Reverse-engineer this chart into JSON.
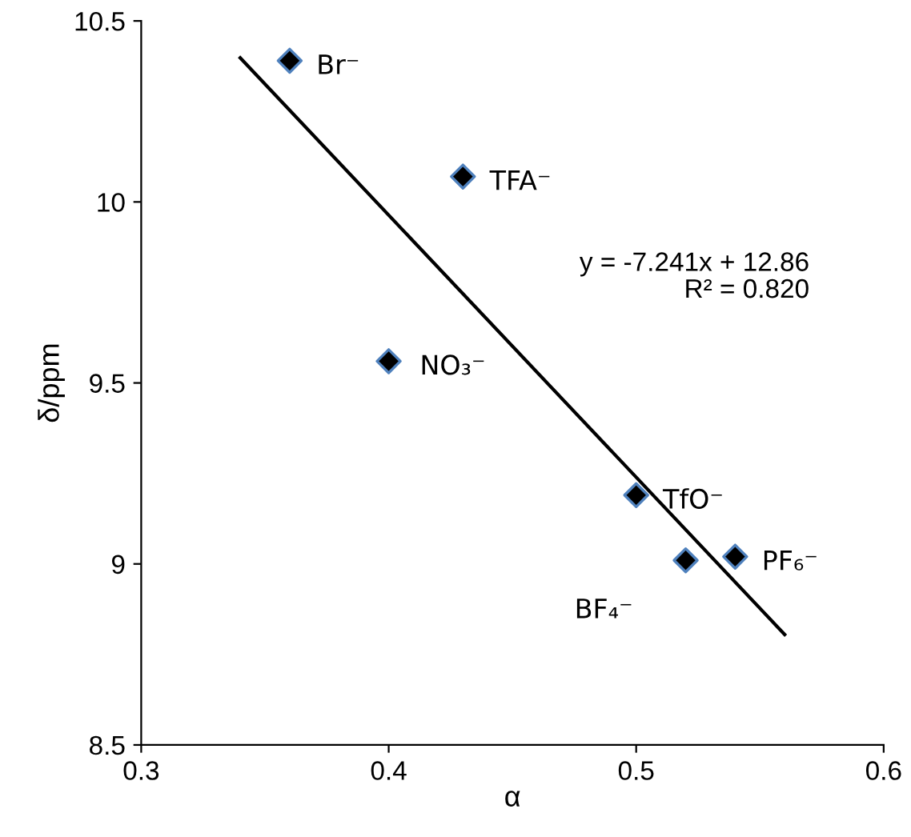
{
  "chart_data": {
    "type": "scatter",
    "xlabel": "α",
    "ylabel": "δ/ppm",
    "xlim": [
      0.3,
      0.6
    ],
    "xticks": [
      0.3,
      0.4,
      0.5,
      0.6
    ],
    "ylim": [
      8.5,
      10.5
    ],
    "yticks": [
      8.5,
      9,
      9.5,
      10,
      10.5
    ],
    "grid": false,
    "legend": false,
    "series": [
      {
        "marker": "diamond",
        "color": "#000000",
        "x": [
          0.36,
          0.43,
          0.4,
          0.5,
          0.52,
          0.54
        ],
        "values": [
          10.39,
          10.07,
          9.56,
          9.19,
          9.01,
          9.02
        ]
      },
      {
        "type": "line",
        "color": "#000000",
        "x": [
          0.34,
          0.56
        ],
        "values": [
          10.398,
          8.805
        ]
      }
    ],
    "annotations": [
      {
        "text": "Br⁻",
        "x": 0.36,
        "y": 10.39
      },
      {
        "text": "TFA⁻",
        "x": 0.43,
        "y": 10.07
      },
      {
        "text": "NO₃⁻",
        "x": 0.4,
        "y": 9.56
      },
      {
        "text": "TfO⁻",
        "x": 0.5,
        "y": 9.19
      },
      {
        "text": "BF₄⁻",
        "x": 0.52,
        "y": 9.01
      },
      {
        "text": "PF₆⁻",
        "x": 0.54,
        "y": 9.02
      },
      "y = -7.241x + 12.86\nR² = 0.820"
    ]
  }
}
